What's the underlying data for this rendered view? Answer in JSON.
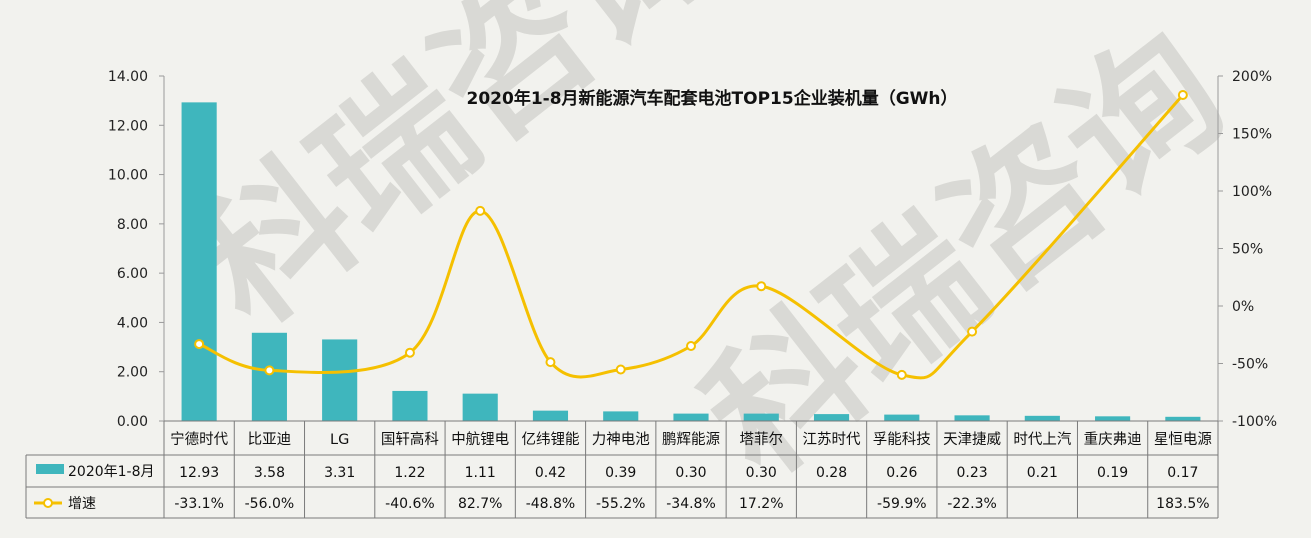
{
  "chart_data": {
    "type": "bar+line",
    "title": "2020年1-8月新能源汽车配套电池TOP15企业装机量（GWh）",
    "categories": [
      "宁德时代",
      "比亚迪",
      "LG",
      "国轩高科",
      "中航锂电",
      "亿纬锂能",
      "力神电池",
      "鹏辉能源",
      "塔菲尔",
      "江苏时代",
      "孚能科技",
      "天津捷威",
      "时代上汽",
      "重庆弗迪",
      "星恒电源"
    ],
    "series": [
      {
        "name": "2020年1-8月",
        "type": "bar",
        "axis": "left",
        "color": "#3fb6bd",
        "values": [
          12.93,
          3.58,
          3.31,
          1.22,
          1.11,
          0.42,
          0.39,
          0.3,
          0.3,
          0.28,
          0.26,
          0.23,
          0.21,
          0.19,
          0.17
        ],
        "labels": [
          "12.93",
          "3.58",
          "3.31",
          "1.22",
          "1.11",
          "0.42",
          "0.39",
          "0.30",
          "0.30",
          "0.28",
          "0.26",
          "0.23",
          "0.21",
          "0.19",
          "0.17"
        ]
      },
      {
        "name": "增速",
        "type": "line",
        "axis": "right",
        "color": "#f5c000",
        "values": [
          -33.1,
          -56.0,
          null,
          -40.6,
          82.7,
          -48.8,
          -55.2,
          -34.8,
          17.2,
          null,
          -59.9,
          -22.3,
          null,
          null,
          183.5
        ],
        "labels": [
          "-33.1%",
          "-56.0%",
          "",
          "-40.6%",
          "82.7%",
          "-48.8%",
          "-55.2%",
          "-34.8%",
          "17.2%",
          "",
          "-59.9%",
          "-22.3%",
          "",
          "",
          "183.5%"
        ]
      }
    ],
    "y_left": {
      "min": 0,
      "max": 14,
      "ticks": [
        "0.00",
        "2.00",
        "4.00",
        "6.00",
        "8.00",
        "10.00",
        "12.00",
        "14.00"
      ]
    },
    "y_right": {
      "min": -100,
      "max": 200,
      "ticks": [
        "-100%",
        "-50%",
        "0%",
        "50%",
        "100%",
        "150%",
        "200%"
      ]
    },
    "grid": false,
    "legend": "data-table-below",
    "watermark": "科瑞咨询"
  }
}
